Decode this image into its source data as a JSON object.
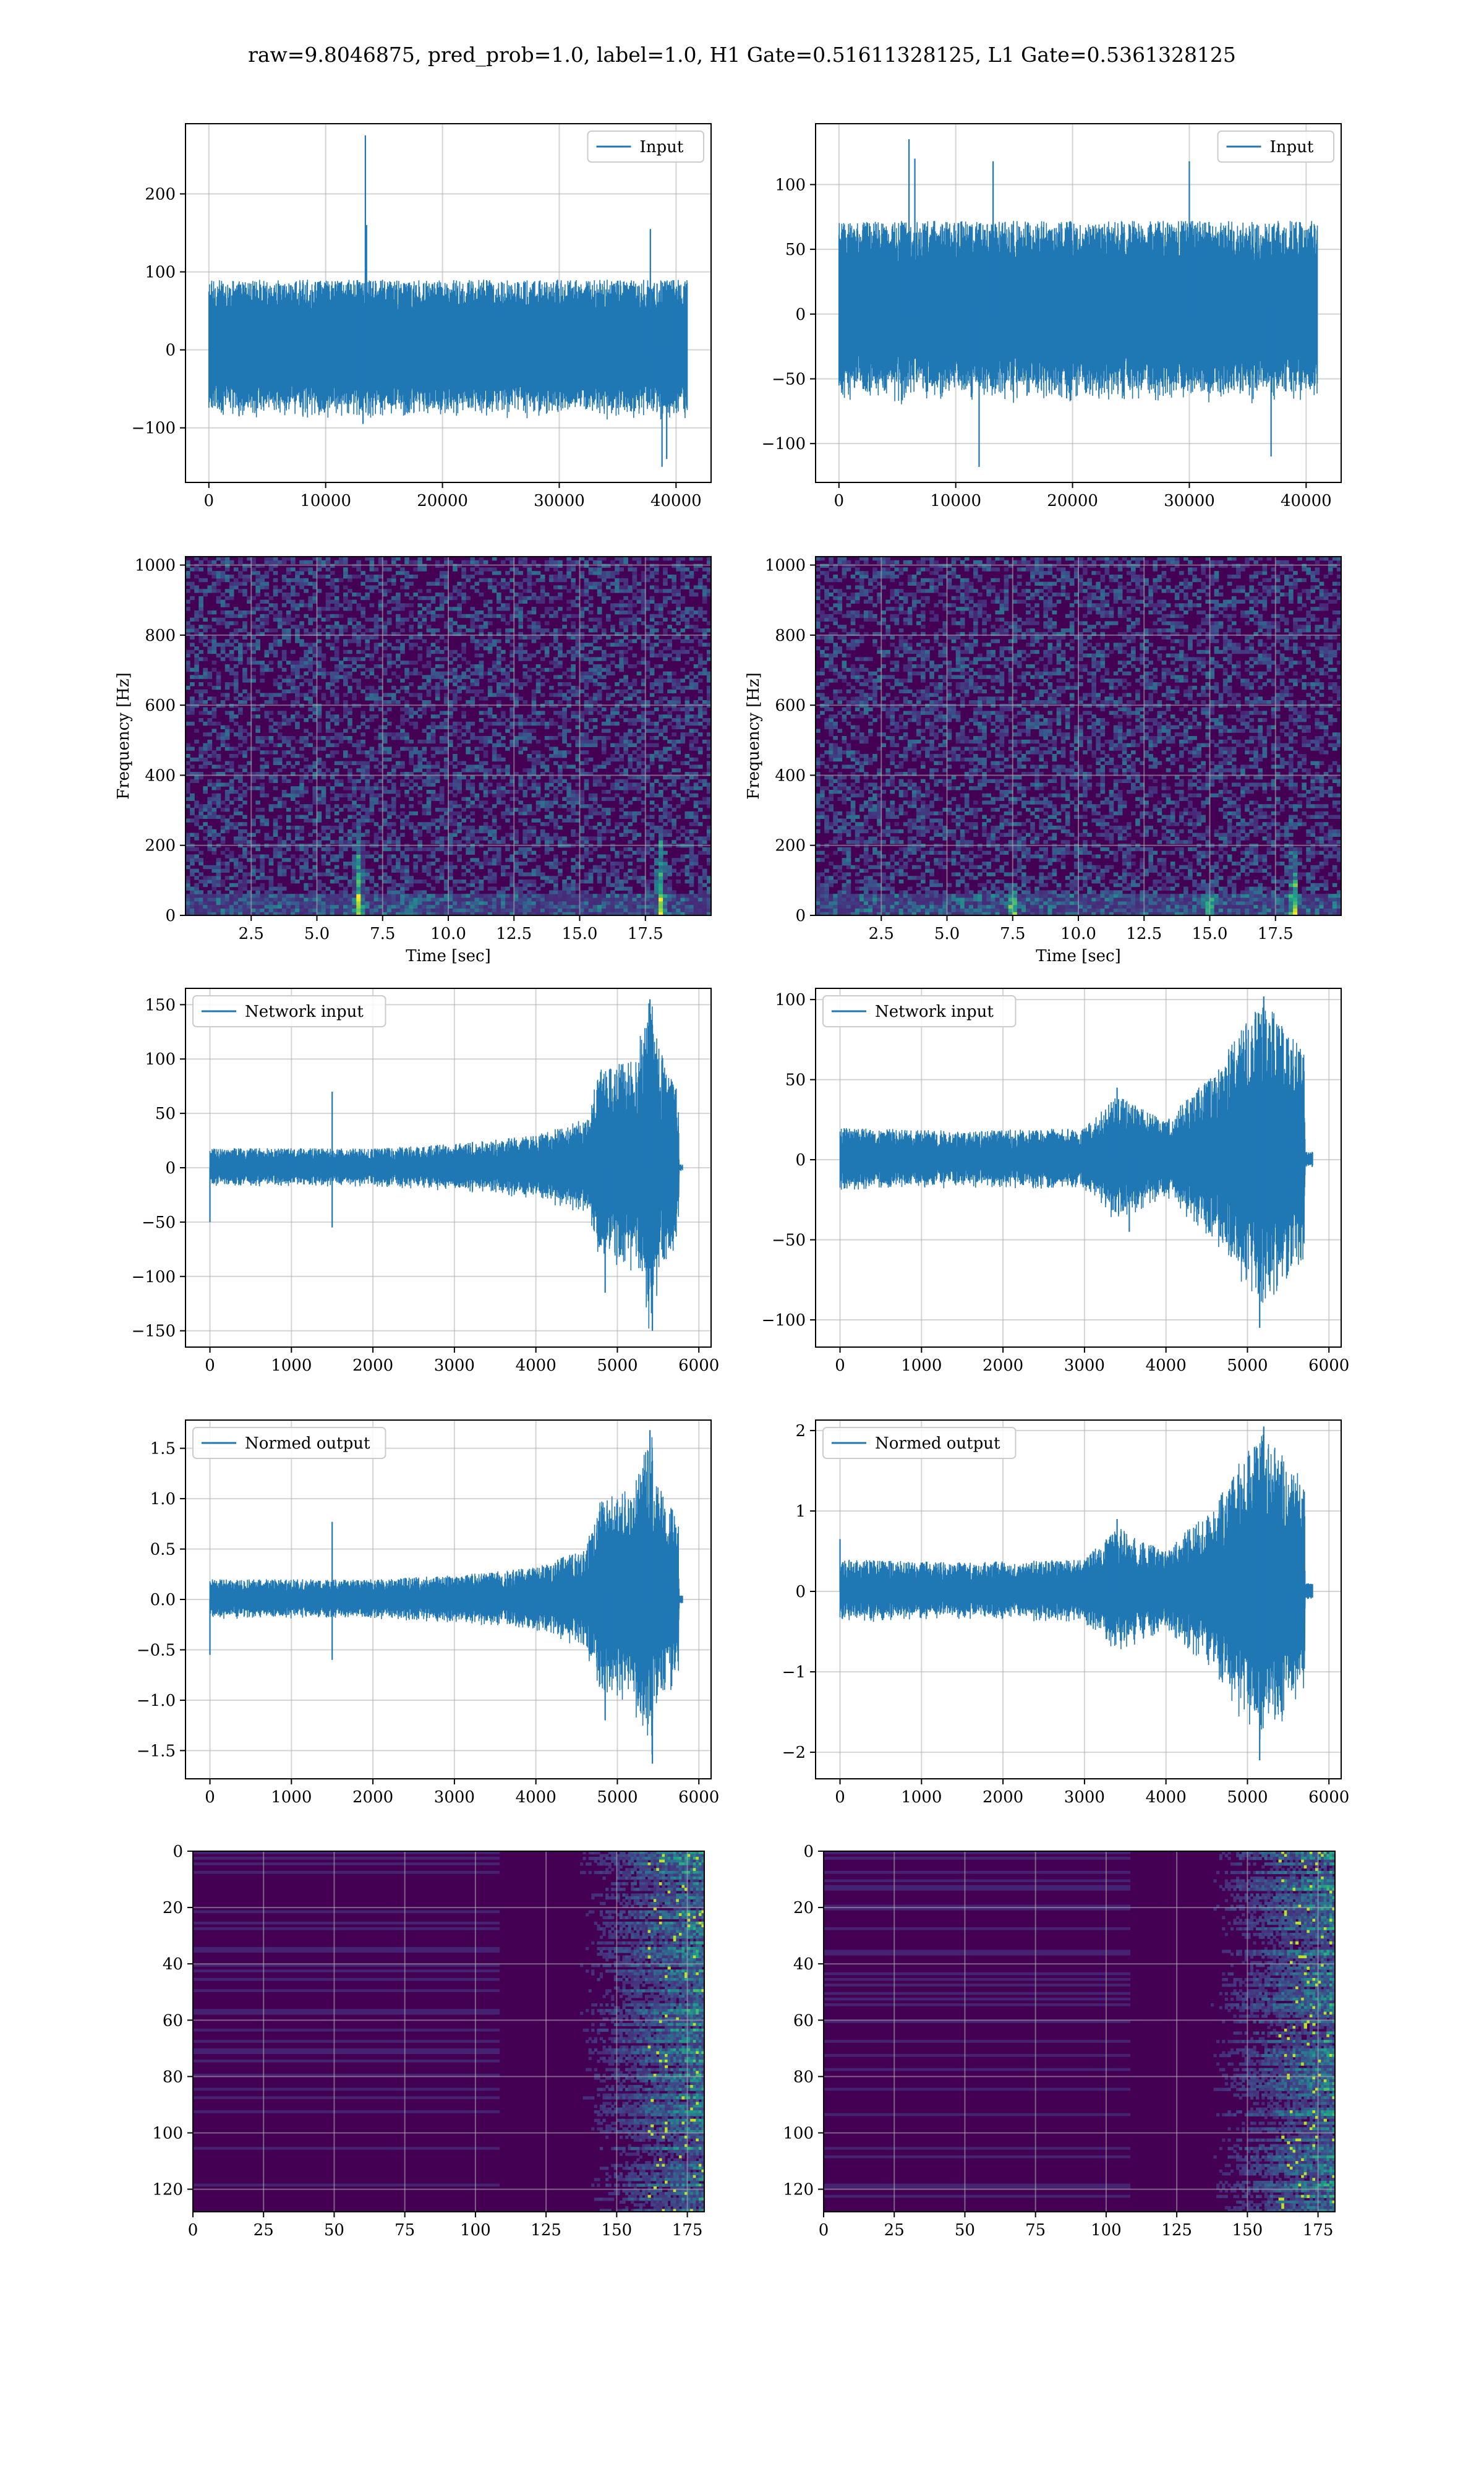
{
  "figure": {
    "suptitle": "raw=9.8046875, pred_prob=1.0, label=1.0, H1 Gate=0.51611328125, L1 Gate=0.5361328125"
  },
  "colors": {
    "line": "#1f77b4",
    "grid": "#b0b0b0",
    "spectrogram_background": "#440154",
    "viridis": [
      "#440154",
      "#482878",
      "#3e4989",
      "#31688e",
      "#26828e",
      "#1f9e89",
      "#35b779",
      "#6ece58",
      "#b5de2b",
      "#fde725"
    ]
  },
  "chart_data": [
    {
      "type": "line",
      "legend": "Input",
      "legend_loc": "upper right",
      "grid": true,
      "xlim": [
        -2000,
        43000
      ],
      "ylim": [
        -170,
        290
      ],
      "xticks": [
        0,
        10000,
        20000,
        30000,
        40000
      ],
      "yticks": [
        -100,
        0,
        100,
        200
      ],
      "series": [
        {
          "name": "Input",
          "x": [
            0,
            40960
          ],
          "noise_band": [
            -90,
            90
          ],
          "spikes": [
            [
              13400,
              275
            ],
            [
              13500,
              160
            ],
            [
              13200,
              -95
            ],
            [
              37800,
              155
            ],
            [
              38800,
              -150
            ],
            [
              39200,
              -140
            ]
          ]
        }
      ]
    },
    {
      "type": "line",
      "legend": "Input",
      "legend_loc": "upper right",
      "grid": true,
      "xlim": [
        -2000,
        43000
      ],
      "ylim": [
        -130,
        147
      ],
      "xticks": [
        0,
        10000,
        20000,
        30000,
        40000
      ],
      "yticks": [
        -100,
        -50,
        0,
        50,
        100
      ],
      "series": [
        {
          "name": "Input",
          "x": [
            0,
            40960
          ],
          "noise_band": [
            -70,
            72
          ],
          "spikes": [
            [
              6000,
              135
            ],
            [
              6500,
              120
            ],
            [
              13200,
              118
            ],
            [
              30000,
              118
            ],
            [
              12000,
              -118
            ],
            [
              37000,
              -110
            ]
          ]
        }
      ]
    },
    {
      "type": "heatmap",
      "colormap": "viridis",
      "grid": true,
      "xlabel": "Time [sec]",
      "ylabel": "Frequency [Hz]",
      "xlim": [
        0,
        20
      ],
      "ylim": [
        0,
        1024
      ],
      "xticks": [
        2.5,
        5.0,
        7.5,
        10.0,
        12.5,
        15.0,
        17.5
      ],
      "yticks": [
        0,
        200,
        400,
        600,
        800,
        1000
      ],
      "chirps": [
        [
          6.6,
          180
        ],
        [
          18.1,
          170
        ]
      ]
    },
    {
      "type": "heatmap",
      "colormap": "viridis",
      "grid": true,
      "xlabel": "Time [sec]",
      "ylabel": "Frequency [Hz]",
      "xlim": [
        0,
        20
      ],
      "ylim": [
        0,
        1024
      ],
      "xticks": [
        2.5,
        5.0,
        7.5,
        10.0,
        12.5,
        15.0,
        17.5
      ],
      "yticks": [
        0,
        200,
        400,
        600,
        800,
        1000
      ],
      "chirps": [
        [
          18.2,
          130
        ],
        [
          15.0,
          60
        ],
        [
          7.5,
          60
        ]
      ]
    },
    {
      "type": "line",
      "legend": "Network input",
      "legend_loc": "upper left",
      "grid": true,
      "xlim": [
        -300,
        6150
      ],
      "ylim": [
        -165,
        165
      ],
      "xticks": [
        0,
        1000,
        2000,
        3000,
        4000,
        5000,
        6000
      ],
      "yticks": [
        -150,
        -100,
        -50,
        0,
        50,
        100,
        150
      ],
      "series": [
        {
          "name": "Network input",
          "x": [
            0,
            5800
          ],
          "envelope": [
            [
              0,
              18
            ],
            [
              1000,
              18
            ],
            [
              2000,
              18
            ],
            [
              3000,
              22
            ],
            [
              4000,
              30
            ],
            [
              4600,
              45
            ],
            [
              4800,
              95
            ],
            [
              5200,
              100
            ],
            [
              5400,
              160
            ],
            [
              5600,
              90
            ],
            [
              5750,
              70
            ],
            [
              5760,
              3
            ],
            [
              5800,
              3
            ]
          ],
          "spikes": [
            [
              0,
              -50
            ],
            [
              1500,
              70
            ],
            [
              1500,
              -55
            ],
            [
              5400,
              155
            ],
            [
              5430,
              -150
            ],
            [
              4850,
              -115
            ]
          ]
        }
      ]
    },
    {
      "type": "line",
      "legend": "Network input",
      "legend_loc": "upper left",
      "grid": true,
      "xlim": [
        -300,
        6150
      ],
      "ylim": [
        -117,
        107
      ],
      "xticks": [
        0,
        1000,
        2000,
        3000,
        4000,
        5000,
        6000
      ],
      "yticks": [
        -100,
        -50,
        0,
        50,
        100
      ],
      "series": [
        {
          "name": "Network input",
          "x": [
            0,
            5800
          ],
          "envelope": [
            [
              0,
              20
            ],
            [
              1500,
              18
            ],
            [
              3000,
              20
            ],
            [
              3400,
              40
            ],
            [
              4000,
              25
            ],
            [
              4600,
              55
            ],
            [
              4900,
              80
            ],
            [
              5200,
              100
            ],
            [
              5500,
              80
            ],
            [
              5700,
              70
            ],
            [
              5710,
              5
            ],
            [
              5800,
              5
            ]
          ],
          "spikes": [
            [
              5150,
              -105
            ],
            [
              5200,
              102
            ],
            [
              3400,
              45
            ],
            [
              3550,
              -45
            ]
          ]
        }
      ]
    },
    {
      "type": "line",
      "legend": "Normed output",
      "legend_loc": "upper left",
      "grid": true,
      "xlim": [
        -300,
        6150
      ],
      "ylim": [
        -1.78,
        1.78
      ],
      "xticks": [
        0,
        1000,
        2000,
        3000,
        4000,
        5000,
        6000
      ],
      "yticks": [
        -1.5,
        -1.0,
        -0.5,
        0.0,
        0.5,
        1.0,
        1.5
      ],
      "series": [
        {
          "name": "Normed output",
          "x": [
            0,
            5800
          ],
          "envelope": [
            [
              0,
              0.2
            ],
            [
              1000,
              0.2
            ],
            [
              2000,
              0.2
            ],
            [
              3000,
              0.24
            ],
            [
              4000,
              0.32
            ],
            [
              4600,
              0.5
            ],
            [
              4800,
              1.0
            ],
            [
              5200,
              1.1
            ],
            [
              5400,
              1.7
            ],
            [
              5600,
              1.0
            ],
            [
              5750,
              0.8
            ],
            [
              5760,
              0.04
            ],
            [
              5800,
              0.04
            ]
          ],
          "spikes": [
            [
              0,
              -0.55
            ],
            [
              1500,
              0.77
            ],
            [
              1500,
              -0.6
            ],
            [
              5400,
              1.68
            ],
            [
              5430,
              -1.63
            ],
            [
              4850,
              -1.2
            ]
          ]
        }
      ]
    },
    {
      "type": "line",
      "legend": "Normed output",
      "legend_loc": "upper left",
      "grid": true,
      "xlim": [
        -300,
        6150
      ],
      "ylim": [
        -2.33,
        2.13
      ],
      "xticks": [
        0,
        1000,
        2000,
        3000,
        4000,
        5000,
        6000
      ],
      "yticks": [
        -2,
        -1,
        0,
        1,
        2
      ],
      "series": [
        {
          "name": "Normed output",
          "x": [
            0,
            5800
          ],
          "envelope": [
            [
              0,
              0.4
            ],
            [
              1500,
              0.36
            ],
            [
              3000,
              0.4
            ],
            [
              3400,
              0.8
            ],
            [
              4000,
              0.5
            ],
            [
              4600,
              1.1
            ],
            [
              4900,
              1.6
            ],
            [
              5200,
              2.0
            ],
            [
              5500,
              1.6
            ],
            [
              5700,
              1.4
            ],
            [
              5710,
              0.1
            ],
            [
              5800,
              0.1
            ]
          ],
          "spikes": [
            [
              5150,
              -2.1
            ],
            [
              5200,
              2.05
            ],
            [
              0,
              0.65
            ],
            [
              3400,
              0.9
            ]
          ]
        }
      ]
    },
    {
      "type": "heatmap",
      "colormap": "viridis",
      "grid": true,
      "origin": "upper",
      "xlim": [
        0,
        181
      ],
      "ylim": [
        128,
        0
      ],
      "xticks": [
        0,
        25,
        50,
        75,
        100,
        125,
        150,
        175
      ],
      "yticks": [
        0,
        20,
        40,
        60,
        80,
        100,
        120
      ]
    },
    {
      "type": "heatmap",
      "colormap": "viridis",
      "grid": true,
      "origin": "upper",
      "xlim": [
        0,
        181
      ],
      "ylim": [
        128,
        0
      ],
      "xticks": [
        0,
        25,
        50,
        75,
        100,
        125,
        150,
        175
      ],
      "yticks": [
        0,
        20,
        40,
        60,
        80,
        100,
        120
      ]
    }
  ]
}
